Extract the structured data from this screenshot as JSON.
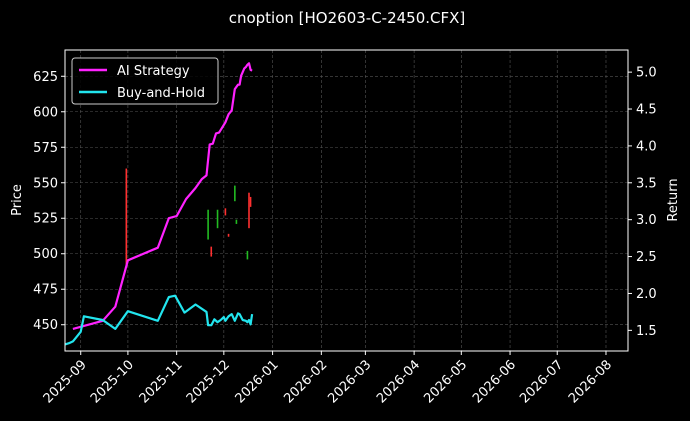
{
  "chart_data": {
    "type": "line",
    "title": "cnoption [HO2603-C-2450.CFX]",
    "ylabel_left": "Price",
    "ylabel_right": "Return",
    "grid": true,
    "legend_position": "top-left",
    "x_ticks": [
      "2025-09",
      "2025-10",
      "2025-11",
      "2025-12",
      "2026-01",
      "2026-02",
      "2026-03",
      "2026-04",
      "2026-05",
      "2026-06",
      "2026-07",
      "2026-08"
    ],
    "xlim": [
      "2025-08-22",
      "2026-08-15"
    ],
    "left_axis": {
      "ylim": [
        431.5,
        643.5
      ],
      "ticks": [
        450,
        475,
        500,
        525,
        550,
        575,
        600,
        625
      ]
    },
    "right_axis": {
      "ylim": [
        1.22,
        5.3
      ],
      "ticks": [
        1.5,
        2.0,
        2.5,
        3.0,
        3.5,
        4.0,
        4.5,
        5.0
      ],
      "tick_labels": [
        "1.5",
        "2.0",
        "2.5",
        "3.0",
        "3.5",
        "4.0",
        "4.5",
        "5.0"
      ]
    },
    "series": [
      {
        "name": "AI Strategy",
        "color": "#ff22ff",
        "axis": "right",
        "points": [
          [
            "2025-08-27",
            1.52
          ],
          [
            "2025-09-15",
            1.63
          ],
          [
            "2025-09-23",
            1.82
          ],
          [
            "2025-10-01",
            2.45
          ],
          [
            "2025-10-20",
            2.62
          ],
          [
            "2025-10-27",
            3.02
          ],
          [
            "2025-11-01",
            3.05
          ],
          [
            "2025-11-07",
            3.28
          ],
          [
            "2025-11-13",
            3.43
          ],
          [
            "2025-11-17",
            3.55
          ],
          [
            "2025-11-20",
            3.6
          ],
          [
            "2025-11-22",
            4.02
          ],
          [
            "2025-11-24",
            4.03
          ],
          [
            "2025-11-26",
            4.17
          ],
          [
            "2025-11-28",
            4.18
          ],
          [
            "2025-12-02",
            4.32
          ],
          [
            "2025-12-04",
            4.43
          ],
          [
            "2025-12-06",
            4.48
          ],
          [
            "2025-12-08",
            4.77
          ],
          [
            "2025-12-10",
            4.83
          ],
          [
            "2025-12-11",
            4.83
          ],
          [
            "2025-12-12",
            4.95
          ],
          [
            "2025-12-14",
            5.05
          ],
          [
            "2025-12-15",
            5.07
          ],
          [
            "2025-12-16",
            5.1
          ],
          [
            "2025-12-17",
            5.12
          ],
          [
            "2025-12-18",
            5.03
          ],
          [
            "2025-12-19",
            5.02
          ]
        ]
      },
      {
        "name": "Buy-and-Hold",
        "color": "#22e5ee",
        "axis": "right",
        "points": [
          [
            "2025-08-22",
            1.31
          ],
          [
            "2025-08-25",
            1.33
          ],
          [
            "2025-08-27",
            1.35
          ],
          [
            "2025-09-01",
            1.48
          ],
          [
            "2025-09-03",
            1.69
          ],
          [
            "2025-09-15",
            1.64
          ],
          [
            "2025-09-23",
            1.52
          ],
          [
            "2025-10-01",
            1.76
          ],
          [
            "2025-10-20",
            1.63
          ],
          [
            "2025-10-27",
            1.95
          ],
          [
            "2025-10-31",
            1.97
          ],
          [
            "2025-11-06",
            1.74
          ],
          [
            "2025-11-13",
            1.85
          ],
          [
            "2025-11-20",
            1.75
          ],
          [
            "2025-11-21",
            1.57
          ],
          [
            "2025-11-23",
            1.57
          ],
          [
            "2025-11-25",
            1.65
          ],
          [
            "2025-11-27",
            1.61
          ],
          [
            "2025-11-29",
            1.64
          ],
          [
            "2025-12-01",
            1.68
          ],
          [
            "2025-12-02",
            1.63
          ],
          [
            "2025-12-04",
            1.69
          ],
          [
            "2025-12-06",
            1.72
          ],
          [
            "2025-12-08",
            1.63
          ],
          [
            "2025-12-10",
            1.73
          ],
          [
            "2025-12-11",
            1.72
          ],
          [
            "2025-12-13",
            1.64
          ],
          [
            "2025-12-15",
            1.63
          ],
          [
            "2025-12-16",
            1.61
          ],
          [
            "2025-12-17",
            1.64
          ],
          [
            "2025-12-18",
            1.58
          ],
          [
            "2025-12-19",
            1.72
          ]
        ]
      }
    ],
    "trade_marks": [
      {
        "date": "2025-09-30",
        "low": 492,
        "high": 560,
        "color": "#ff3030"
      },
      {
        "date": "2025-11-21",
        "low": 510,
        "high": 531,
        "color": "#22bb22"
      },
      {
        "date": "2025-11-23",
        "low": 498,
        "high": 505,
        "color": "#ff3030"
      },
      {
        "date": "2025-11-27",
        "low": 518,
        "high": 531,
        "color": "#22bb22"
      },
      {
        "date": "2025-12-02",
        "low": 527,
        "high": 532,
        "color": "#ff3030"
      },
      {
        "date": "2025-12-04",
        "low": 512,
        "high": 514,
        "color": "#ff3030"
      },
      {
        "date": "2025-12-08",
        "low": 537,
        "high": 548,
        "color": "#22bb22"
      },
      {
        "date": "2025-12-09",
        "low": 521,
        "high": 524,
        "color": "#22bb22"
      },
      {
        "date": "2025-12-16",
        "low": 496,
        "high": 502,
        "color": "#22bb22"
      },
      {
        "date": "2025-12-17",
        "low": 518,
        "high": 543,
        "color": "#ff3030"
      },
      {
        "date": "2025-12-18",
        "low": 533,
        "high": 540,
        "color": "#ff3030"
      }
    ]
  }
}
